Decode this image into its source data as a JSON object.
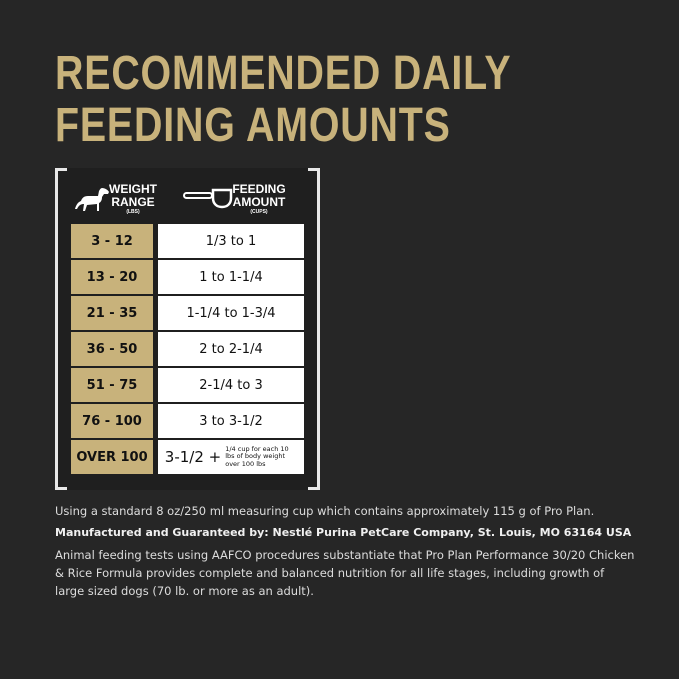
{
  "title": {
    "line1": "RECOMMENDED DAILY",
    "line2": "FEEDING AMOUNTS"
  },
  "table": {
    "weight_header": {
      "line1": "WEIGHT",
      "line2": "RANGE",
      "unit": "(LBS)",
      "icon": "dog-icon"
    },
    "feeding_header": {
      "line1": "FEEDING",
      "line2": "AMOUNT",
      "unit": "(CUPS)",
      "icon": "measuring-cup-icon"
    },
    "rows": [
      {
        "weight": "3 - 12",
        "amount": "1/3 to 1"
      },
      {
        "weight": "13 - 20",
        "amount": "1 to 1-1/4"
      },
      {
        "weight": "21 - 35",
        "amount": "1-1/4 to 1-3/4"
      },
      {
        "weight": "36 - 50",
        "amount": "2 to 2-1/4"
      },
      {
        "weight": "51 - 75",
        "amount": "2-1/4 to 3"
      },
      {
        "weight": "76 - 100",
        "amount": "3 to 3-1/2"
      },
      {
        "weight": "OVER 100",
        "amount": "3-1/2 +",
        "note": "1/4 cup for each 10 lbs of body weight over 100 lbs"
      }
    ]
  },
  "colors": {
    "accent": "#c8b27b",
    "background": "#262626"
  },
  "footnotes": {
    "cup": "Using a standard 8 oz/250 ml measuring cup which contains approximately 115 g of Pro Plan.",
    "manufacturer": "Manufactured and Guaranteed by: Nestlé Purina PetCare Company, St. Louis, MO 63164 USA",
    "aafco": "Animal feeding tests using AAFCO procedures substantiate that Pro Plan Performance 30/20 Chicken & Rice Formula provides complete and balanced nutrition for all life stages, including growth of large sized dogs (70 lb. or more as an adult)."
  }
}
